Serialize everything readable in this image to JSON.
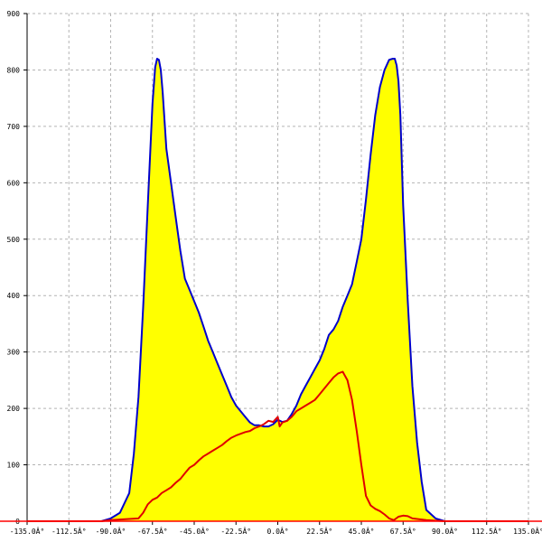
{
  "chart_data": {
    "type": "area",
    "x_ticks": [
      {
        "value": -135.0,
        "label": "-135.0Â°"
      },
      {
        "value": -112.5,
        "label": "-112.5Â°"
      },
      {
        "value": -90.0,
        "label": "-90.0Â°"
      },
      {
        "value": -67.5,
        "label": "-67.5Â°"
      },
      {
        "value": -45.0,
        "label": "-45.0Â°"
      },
      {
        "value": -22.5,
        "label": "-22.5Â°"
      },
      {
        "value": 0.0,
        "label": "0.0Â°"
      },
      {
        "value": 22.5,
        "label": "22.5Â°"
      },
      {
        "value": 45.0,
        "label": "45.0Â°"
      },
      {
        "value": 67.5,
        "label": "67.5Â°"
      },
      {
        "value": 90.0,
        "label": "90.0Â°"
      },
      {
        "value": 112.5,
        "label": "112.5Â°"
      },
      {
        "value": 135.0,
        "label": "135.0Â°"
      }
    ],
    "y_ticks": [
      0,
      100,
      200,
      300,
      400,
      500,
      600,
      700,
      800,
      900
    ],
    "xlim": [
      -135,
      135
    ],
    "ylim": [
      0,
      900
    ],
    "grid": true,
    "series": [
      {
        "style": "filled-area",
        "fill_color": "#ffff00",
        "line_color": "#0000cc",
        "x": [
          -135,
          -95,
          -90,
          -85,
          -80,
          -77.5,
          -75,
          -72.5,
          -70,
          -67.5,
          -66,
          -65,
          -64,
          -63,
          -62,
          -60,
          -57.5,
          -55,
          -52.5,
          -50,
          -47.5,
          -45,
          -42.5,
          -40,
          -37.5,
          -35,
          -32.5,
          -30,
          -27.5,
          -25,
          -22.5,
          -20,
          -17.5,
          -15,
          -12.5,
          -10,
          -7.5,
          -5,
          -2.5,
          0,
          2.5,
          5,
          7.5,
          10,
          12.5,
          15,
          17.5,
          20,
          22.5,
          25,
          27.5,
          30,
          32.5,
          35,
          37.5,
          40,
          42.5,
          45,
          47.5,
          50,
          52.5,
          55,
          57.5,
          60,
          62,
          63,
          64,
          65,
          66,
          67.5,
          70,
          72.5,
          75,
          77.5,
          80,
          85,
          90,
          95,
          135
        ],
        "y": [
          0,
          0,
          5,
          15,
          50,
          120,
          220,
          380,
          560,
          740,
          805,
          820,
          818,
          800,
          760,
          660,
          600,
          540,
          480,
          430,
          410,
          390,
          370,
          345,
          320,
          300,
          280,
          260,
          240,
          220,
          205,
          195,
          185,
          175,
          170,
          170,
          168,
          168,
          172,
          180,
          176,
          178,
          190,
          205,
          225,
          240,
          255,
          270,
          285,
          305,
          330,
          340,
          355,
          380,
          400,
          420,
          460,
          500,
          570,
          650,
          720,
          770,
          800,
          818,
          820,
          820,
          808,
          780,
          720,
          560,
          390,
          240,
          140,
          70,
          20,
          5,
          0,
          0,
          0
        ]
      },
      {
        "style": "line",
        "line_color": "#e00000",
        "x": [
          -135,
          -95,
          -90,
          -85,
          -80,
          -75,
          -72.5,
          -70,
          -67.5,
          -65,
          -62.5,
          -60,
          -57.5,
          -55,
          -52.5,
          -50,
          -47.5,
          -45,
          -42.5,
          -40,
          -37.5,
          -35,
          -32.5,
          -30,
          -27.5,
          -25,
          -22.5,
          -20,
          -17.5,
          -15,
          -12.5,
          -10,
          -7.5,
          -5,
          -2.5,
          0,
          1,
          2.5,
          5,
          7.5,
          10,
          12.5,
          15,
          17.5,
          20,
          22.5,
          25,
          27.5,
          30,
          32.5,
          35,
          37.5,
          40,
          42.5,
          45,
          47.5,
          50,
          52.5,
          55,
          57.5,
          60,
          62.5,
          65,
          67.5,
          70,
          72.5,
          75,
          80,
          85,
          90,
          95,
          135
        ],
        "y": [
          0,
          0,
          2,
          3,
          4,
          5,
          15,
          30,
          38,
          42,
          50,
          55,
          60,
          68,
          75,
          85,
          95,
          100,
          108,
          115,
          120,
          125,
          130,
          135,
          142,
          148,
          152,
          155,
          158,
          160,
          165,
          168,
          172,
          178,
          176,
          185,
          168,
          175,
          178,
          185,
          195,
          200,
          205,
          210,
          215,
          225,
          235,
          245,
          255,
          262,
          265,
          250,
          215,
          160,
          100,
          45,
          28,
          22,
          18,
          12,
          5,
          2,
          8,
          10,
          9,
          5,
          4,
          2,
          1,
          0,
          0,
          0
        ]
      }
    ]
  }
}
